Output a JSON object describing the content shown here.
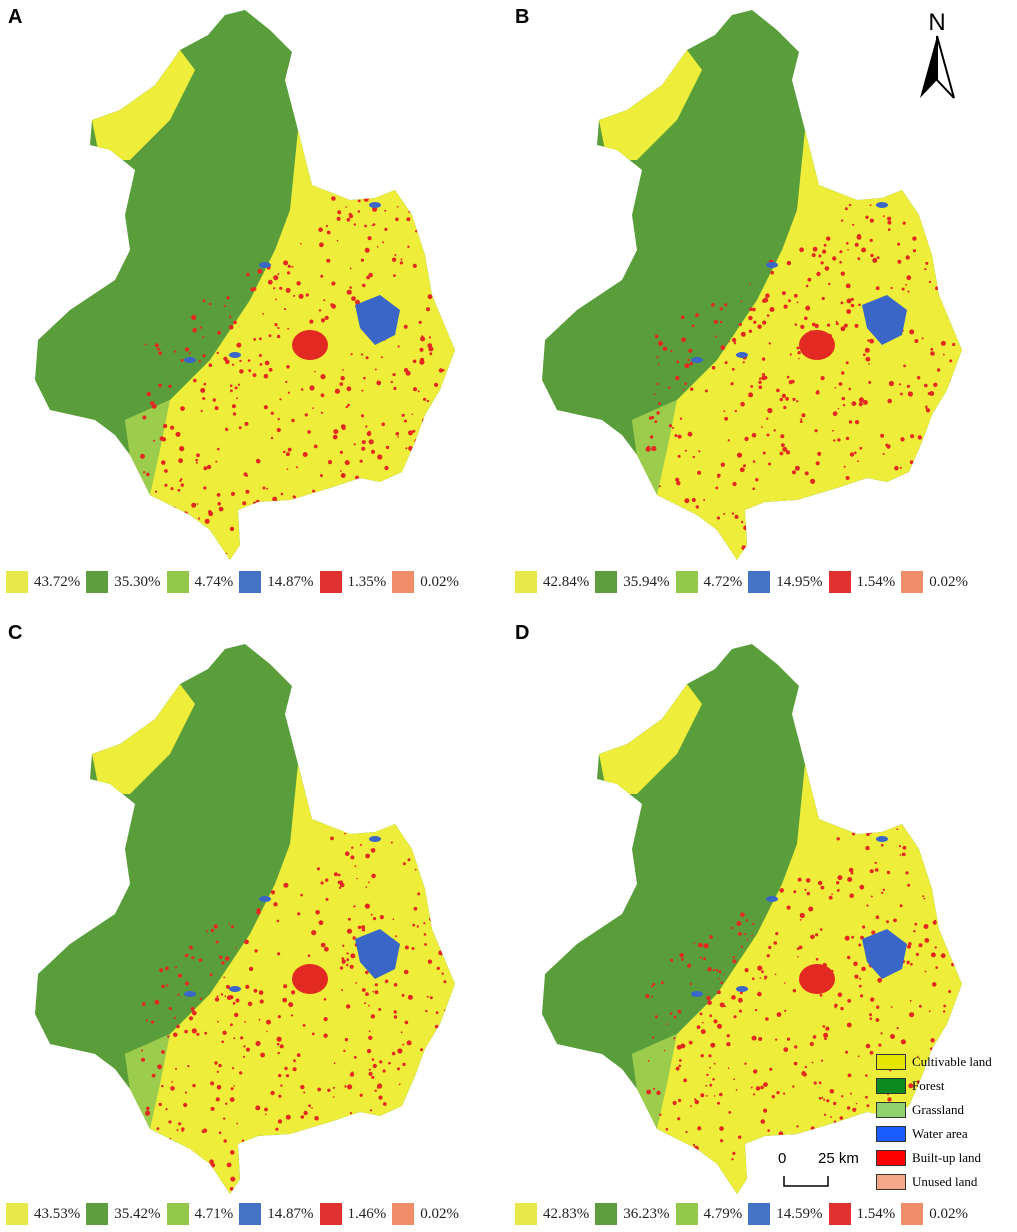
{
  "panels": [
    {
      "letter": "A",
      "stats": [
        "43.72%",
        "35.30%",
        "4.74%",
        "14.87%",
        "1.35%",
        "0.02%"
      ]
    },
    {
      "letter": "B",
      "stats": [
        "42.84%",
        "35.94%",
        "4.72%",
        "14.95%",
        "1.54%",
        "0.02%"
      ]
    },
    {
      "letter": "C",
      "stats": [
        "43.53%",
        "35.42%",
        "4.71%",
        "14.87%",
        "1.46%",
        "0.02%"
      ]
    },
    {
      "letter": "D",
      "stats": [
        "42.83%",
        "36.23%",
        "4.79%",
        "14.59%",
        "1.54%",
        "0.02%"
      ]
    }
  ],
  "stat_swatch_colors": [
    "#e8e84a",
    "#5e9e3e",
    "#94c84a",
    "#4472c4",
    "#e03030",
    "#ef8c6a"
  ],
  "legend": {
    "items": [
      {
        "label": "Cultivable land",
        "color": "#e6e600"
      },
      {
        "label": "Forest",
        "color": "#0a8a1e"
      },
      {
        "label": "Grassland",
        "color": "#8fd16b"
      },
      {
        "label": "Water area",
        "color": "#1a5cff"
      },
      {
        "label": "Built-up land",
        "color": "#ff0000"
      },
      {
        "label": "Unused land",
        "color": "#f5a78a"
      }
    ]
  },
  "scale_bar": {
    "start": "0",
    "end": "25 km"
  },
  "north_arrow": {
    "label": "N"
  },
  "map_colors": {
    "cultivable": "#eded3a",
    "forest": "#5a9e3c",
    "grassland": "#9ccc4c",
    "water": "#3a66c8",
    "builtup": "#e32a22"
  }
}
